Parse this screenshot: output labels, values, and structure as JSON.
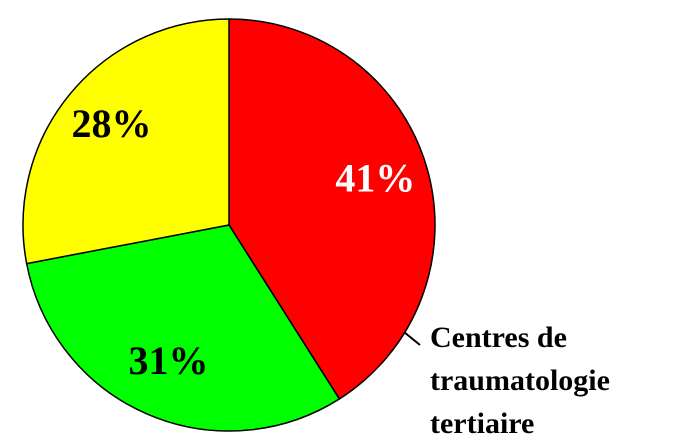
{
  "chart_data": {
    "type": "pie",
    "categories": [
      null,
      null,
      null
    ],
    "values": [
      41,
      31,
      28
    ],
    "value_labels": [
      "41%",
      "31%",
      "28%"
    ],
    "colors": [
      "#ff0000",
      "#00ff00",
      "#ffff00"
    ],
    "label_colors": [
      "#ffffff",
      "#000000",
      "#000000"
    ],
    "annotation": [
      "Centres de",
      "traumatologie",
      "tertiaire"
    ]
  }
}
